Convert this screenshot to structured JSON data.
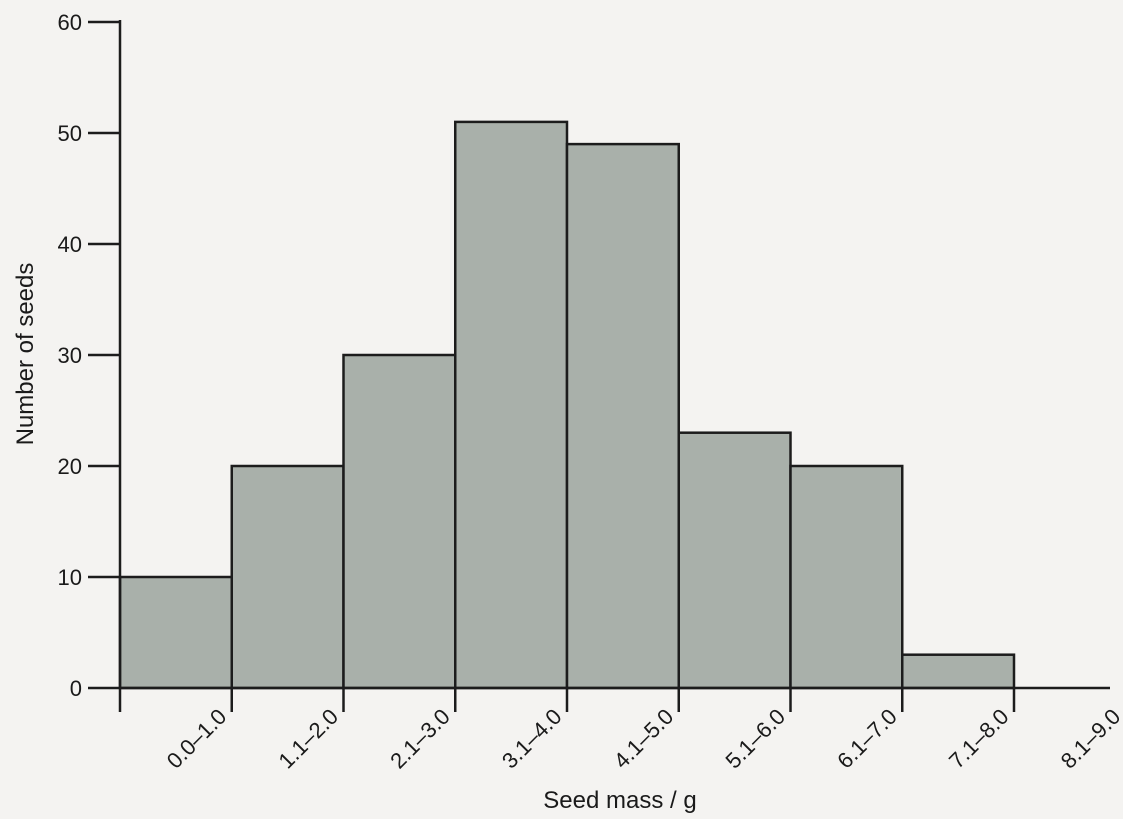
{
  "chart_data": {
    "type": "bar",
    "title": "",
    "xlabel": "Seed mass / g",
    "ylabel": "Number of seeds",
    "categories": [
      "0.0–1.0",
      "1.1–2.0",
      "2.1–3.0",
      "3.1–4.0",
      "4.1–5.0",
      "5.1–6.0",
      "6.1–7.0",
      "7.1–8.0",
      "8.1–9.0"
    ],
    "values": [
      10,
      20,
      30,
      51,
      49,
      23,
      20,
      3,
      0
    ],
    "ylim": [
      0,
      60
    ],
    "yticks": [
      "0",
      "10",
      "20",
      "30",
      "40",
      "50",
      "60"
    ],
    "grid": false,
    "legend": "none",
    "bar_color": "#a9b0aa"
  }
}
